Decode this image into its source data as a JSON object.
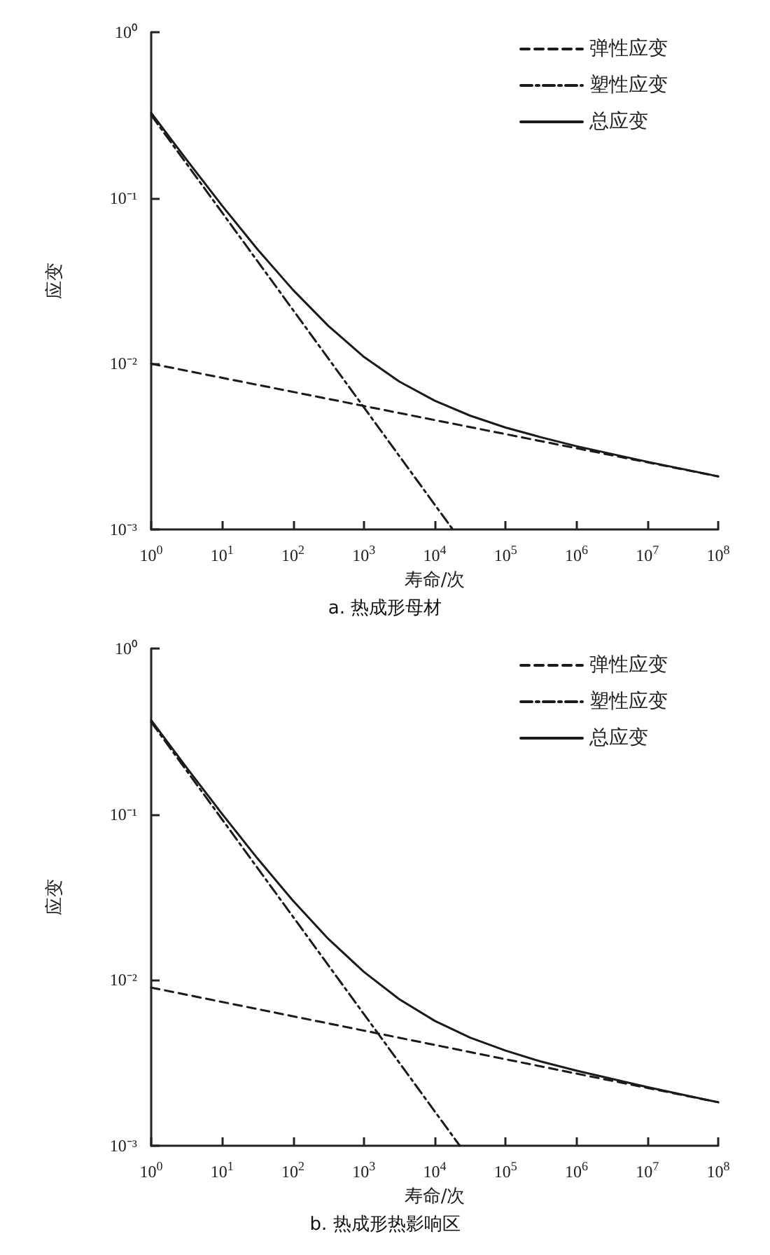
{
  "chart_data": [
    {
      "type": "line",
      "title": "a. 热成形母材",
      "xlabel": "寿命/次",
      "ylabel": "应变",
      "log": "xy",
      "legend": "top right",
      "grid": false,
      "xlim": [
        1,
        100000000
      ],
      "ylim": [
        0.001,
        1
      ],
      "xticks": [
        {
          "value": 1,
          "label": "10$^{0}$"
        },
        {
          "value": 10,
          "label": "10$^{1}$"
        },
        {
          "value": 100,
          "label": "10$^{2}$"
        },
        {
          "value": 1000,
          "label": "10$^{3}$"
        },
        {
          "value": 10000,
          "label": "10$^{4}$"
        },
        {
          "value": 100000,
          "label": "10$^{5}$"
        },
        {
          "value": 1000000,
          "label": "10$^{6}$"
        },
        {
          "value": 10000000,
          "label": "10$^{7}$"
        },
        {
          "value": 100000000,
          "label": "10$^{8}$"
        }
      ],
      "yticks": [
        {
          "value": 0.001,
          "label": "10⁻³"
        },
        {
          "value": 0.01,
          "label": "10⁻²"
        },
        {
          "value": 0.1,
          "label": "10⁻¹"
        },
        {
          "value": 1,
          "label": "10⁰"
        }
      ],
      "series": [
        {
          "name": "弹性应变",
          "color": "#1a1a1a",
          "line_style": "dashed",
          "x": [
            1,
            100000000
          ],
          "values": [
            0.01,
            0.00209
          ]
        },
        {
          "name": "塑性应变",
          "color": "#1a1a1a",
          "line_style": "dashdot",
          "x": [
            1,
            18000
          ],
          "values": [
            0.316,
            0.001
          ]
        },
        {
          "name": "总应变",
          "color": "#1a1a1a",
          "line_style": "solid",
          "x": [
            1,
            3.16,
            10,
            31.6,
            100,
            316,
            1000,
            3160,
            10000,
            31600,
            100000,
            316000,
            1000000,
            10000000,
            100000000
          ],
          "values": [
            0.326,
            0.17,
            0.0899,
            0.049,
            0.0279,
            0.0169,
            0.011,
            0.00781,
            0.00598,
            0.00486,
            0.00412,
            0.0036,
            0.00318,
            0.00256,
            0.00209
          ]
        }
      ]
    },
    {
      "type": "line",
      "title": "b. 热成形热影响区",
      "xlabel": "寿命/次",
      "ylabel": "应变",
      "log": "xy",
      "legend": "top right",
      "grid": false,
      "xlim": [
        1,
        100000000
      ],
      "ylim": [
        0.001,
        1
      ],
      "xticks": [
        {
          "value": 1,
          "label": "10$^{0}$"
        },
        {
          "value": 10,
          "label": "10$^{1}$"
        },
        {
          "value": 100,
          "label": "10$^{2}$"
        },
        {
          "value": 1000,
          "label": "10$^{3}$"
        },
        {
          "value": 10000,
          "label": "10$^{4}$"
        },
        {
          "value": 100000,
          "label": "10$^{5}$"
        },
        {
          "value": 1000000,
          "label": "10$^{6}$"
        },
        {
          "value": 10000000,
          "label": "10$^{7}$"
        },
        {
          "value": 100000000,
          "label": "10$^{8}$"
        }
      ],
      "yticks": [
        {
          "value": 0.001,
          "label": "10⁻³"
        },
        {
          "value": 0.01,
          "label": "10⁻²"
        },
        {
          "value": 0.1,
          "label": "10⁻¹"
        },
        {
          "value": 1,
          "label": "10⁰"
        }
      ],
      "series": [
        {
          "name": "弹性应变",
          "color": "#1a1a1a",
          "line_style": "dashed",
          "x": [
            1,
            100000000
          ],
          "values": [
            0.009,
            0.00183
          ]
        },
        {
          "name": "塑性应变",
          "color": "#1a1a1a",
          "line_style": "dashdot",
          "x": [
            1,
            22600
          ],
          "values": [
            0.36,
            0.001
          ]
        },
        {
          "name": "总应变",
          "color": "#1a1a1a",
          "line_style": "solid",
          "x": [
            1,
            3.16,
            10,
            31.6,
            100,
            316,
            1000,
            3160,
            10000,
            31600,
            100000,
            316000,
            1000000,
            10000000,
            100000000
          ],
          "values": [
            0.369,
            0.191,
            0.1005,
            0.0541,
            0.0301,
            0.0177,
            0.0112,
            0.00766,
            0.00567,
            0.00449,
            0.00375,
            0.00322,
            0.00284,
            0.00226,
            0.00183
          ]
        }
      ]
    }
  ]
}
